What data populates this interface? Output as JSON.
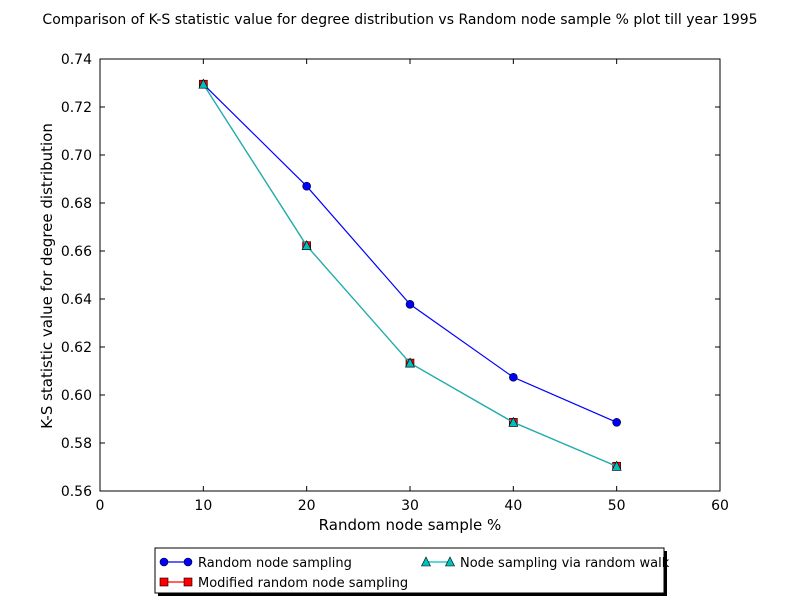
{
  "chart_data": {
    "type": "line",
    "title": "Comparison of K-S statistic value for degree distribution vs Random node sample % plot till year 1995",
    "xlabel": "Random node sample %",
    "ylabel": "K-S statistic value for degree distribution",
    "xlim": [
      0,
      60
    ],
    "ylim": [
      0.56,
      0.74
    ],
    "xticks": [
      0,
      10,
      20,
      30,
      40,
      50,
      60
    ],
    "xtick_labels": [
      "0",
      "10",
      "20",
      "30",
      "40",
      "50",
      "60"
    ],
    "yticks": [
      0.56,
      0.58,
      0.6,
      0.62,
      0.64,
      0.66,
      0.68,
      0.7,
      0.72,
      0.74
    ],
    "ytick_labels": [
      "0.56",
      "0.58",
      "0.60",
      "0.62",
      "0.64",
      "0.66",
      "0.68",
      "0.70",
      "0.72",
      "0.74"
    ],
    "grid": false,
    "legend_position": "below-center",
    "x": [
      10,
      20,
      30,
      40,
      50
    ],
    "series": [
      {
        "name": "Random node sampling",
        "values": [
          0.7295,
          0.687,
          0.6378,
          0.6074,
          0.5886
        ],
        "color": "#0000ff",
        "marker": "circle"
      },
      {
        "name": "Modified random node sampling",
        "values": [
          0.7295,
          0.6622,
          0.6133,
          0.5886,
          0.5703
        ],
        "color": "#ff0000",
        "marker": "square"
      },
      {
        "name": "Node sampling via random walk",
        "values": [
          0.7295,
          0.6622,
          0.6133,
          0.5886,
          0.5703
        ],
        "color": "#00bfbf",
        "marker": "triangle"
      }
    ]
  }
}
